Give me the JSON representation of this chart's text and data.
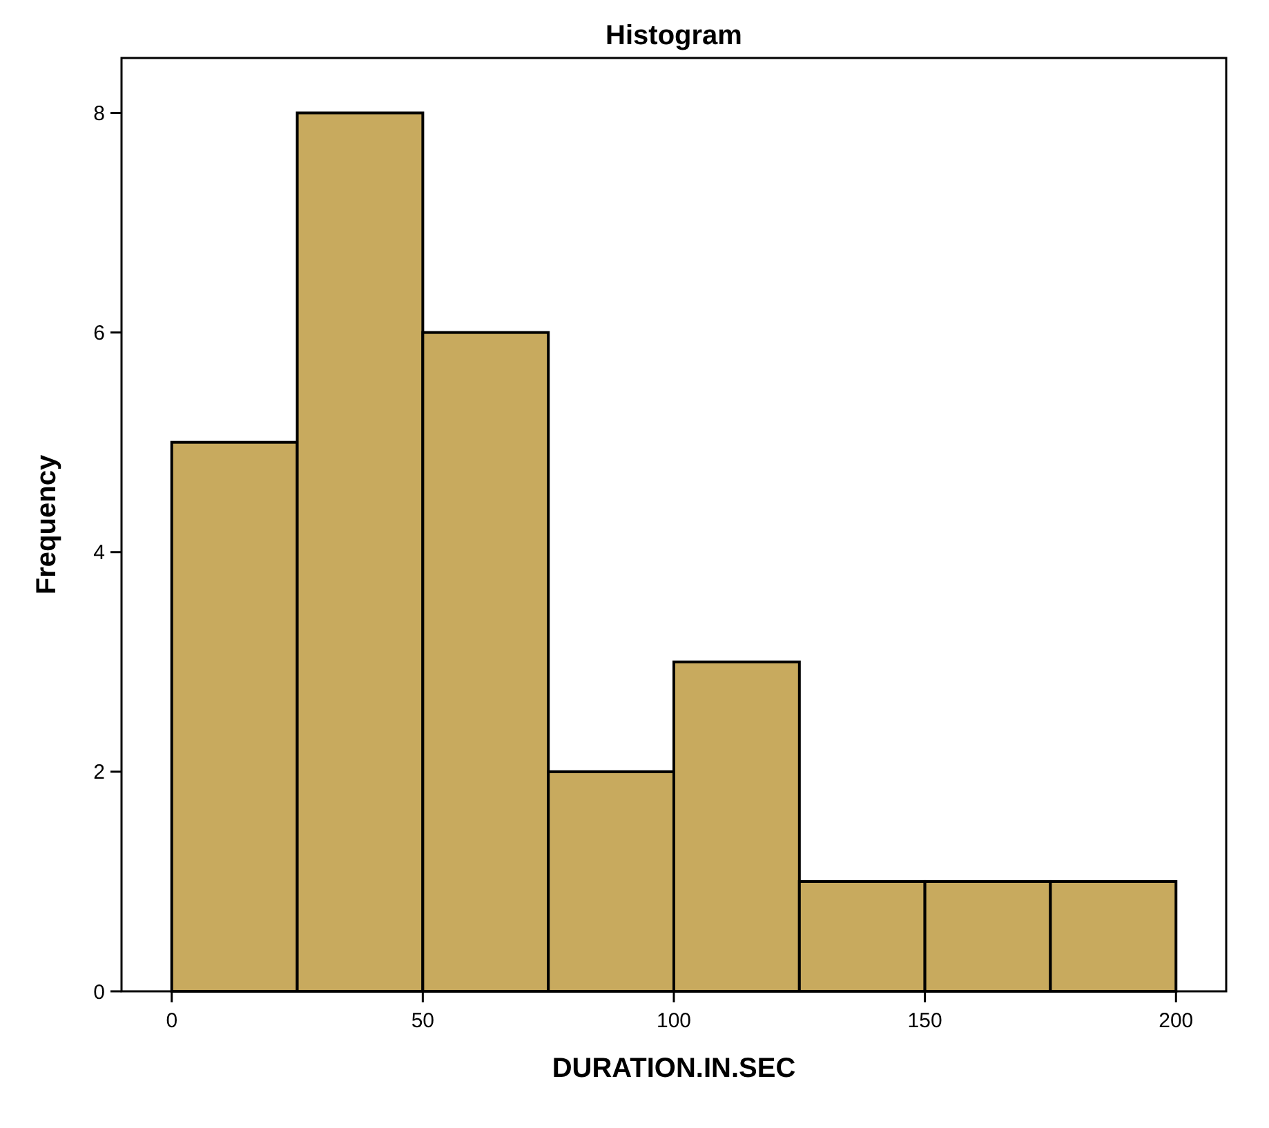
{
  "chart_data": {
    "type": "histogram",
    "title": "Histogram",
    "xlabel": "DURATION.IN.SEC",
    "ylabel": "Frequency",
    "bins": [
      0,
      25,
      50,
      75,
      100,
      125,
      150,
      175,
      200
    ],
    "values": [
      5,
      8,
      6,
      2,
      3,
      1,
      1,
      1
    ],
    "color": "#c8aa5e",
    "xlim": [
      -10,
      210
    ],
    "xticks": [
      0,
      50,
      100,
      150,
      200
    ],
    "ylim": [
      0,
      8.5
    ],
    "yticks": [
      0,
      2,
      4,
      6,
      8
    ],
    "grid": false
  }
}
